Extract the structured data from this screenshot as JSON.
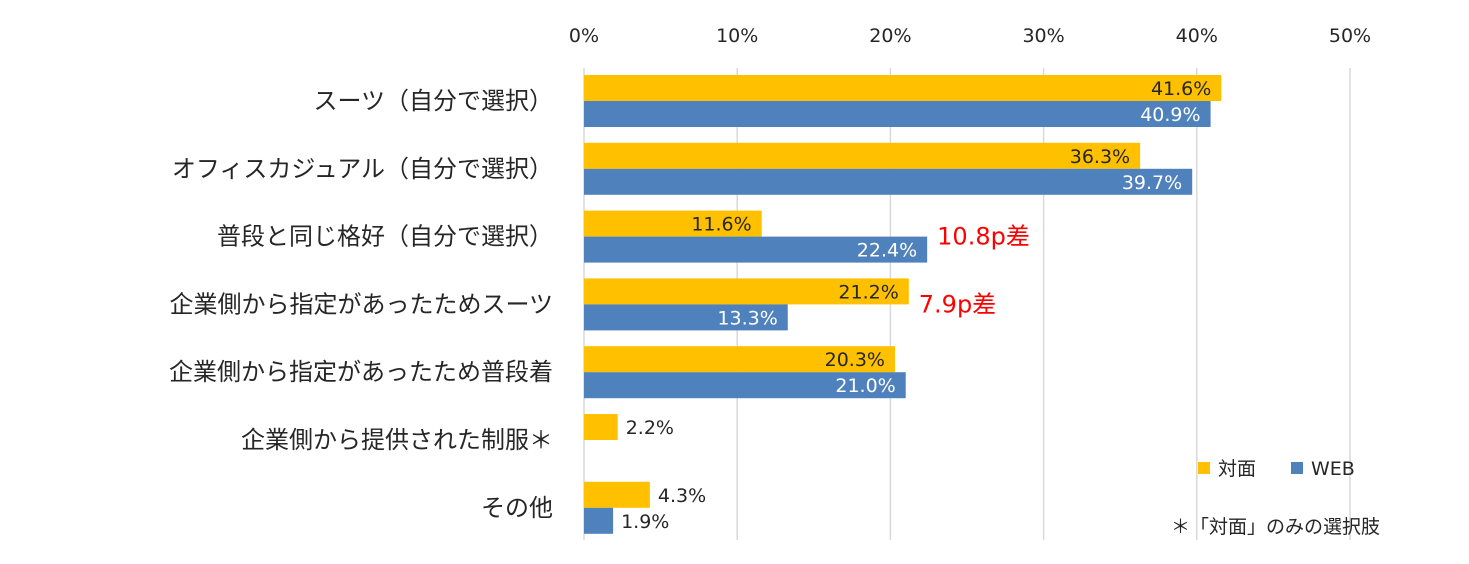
{
  "chart_data": {
    "type": "bar",
    "orientation": "horizontal",
    "categories": [
      "スーツ（自分で選択）",
      "オフィスカジュアル（自分で選択）",
      "普段と同じ格好（自分で選択）",
      "企業側から指定があったためスーツ",
      "企業側から指定があったため普段着",
      "企業側から提供された制服＊",
      "その他"
    ],
    "series": [
      {
        "name": "対面",
        "color": "#FFC000",
        "values": [
          41.6,
          36.3,
          11.6,
          21.2,
          20.3,
          2.2,
          4.3
        ],
        "labels": [
          "41.6%",
          "36.3%",
          "11.6%",
          "21.2%",
          "20.3%",
          "2.2%",
          "4.3%"
        ]
      },
      {
        "name": "WEB",
        "color": "#4F81BD",
        "values": [
          40.9,
          39.7,
          22.4,
          13.3,
          21.0,
          null,
          1.9
        ],
        "labels": [
          "40.9%",
          "39.7%",
          "22.4%",
          "13.3%",
          "21.0%",
          "",
          "1.9%"
        ]
      }
    ],
    "xlim": [
      0,
      50
    ],
    "xticks": [
      0,
      10,
      20,
      30,
      40,
      50
    ],
    "xtick_labels": [
      "0%",
      "10%",
      "20%",
      "30%",
      "40%",
      "50%"
    ],
    "grid": true,
    "legend_position": "bottom-right",
    "annotations": [
      {
        "category_index": 2,
        "text": "10.8p差",
        "color": "#FF0000"
      },
      {
        "category_index": 3,
        "text": "7.9p差",
        "color": "#FF0000"
      }
    ],
    "note": "＊「対面」のみの選択肢"
  }
}
